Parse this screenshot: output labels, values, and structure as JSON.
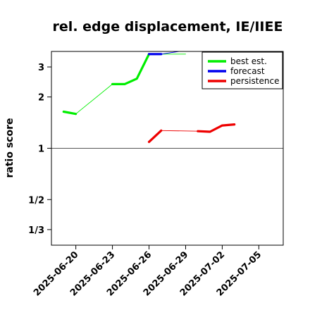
{
  "chart_data": {
    "type": "line",
    "title": "rel. edge displacement, IE/IIEE",
    "xlabel": "",
    "ylabel": "ratio score",
    "y_scale": "log",
    "ylim": [
      0.27,
      3.7
    ],
    "xlim": [
      "2025-06-18",
      "2025-07-07"
    ],
    "x_ticks": [
      "2025-06-20",
      "2025-06-23",
      "2025-06-26",
      "2025-06-29",
      "2025-07-02",
      "2025-07-05"
    ],
    "x_tick_colors": [
      "#000000",
      "#000000",
      "#228b22",
      "#000000",
      "#000000",
      "#000000"
    ],
    "y_ticks": [
      {
        "value": 3,
        "label": "3"
      },
      {
        "value": 2,
        "label": "2"
      },
      {
        "value": 1,
        "label": "1"
      },
      {
        "value": 0.5,
        "label": "1/2"
      },
      {
        "value": 0.3333,
        "label": "1/3"
      }
    ],
    "reference_line": 1,
    "legend_position": "top-right",
    "series": [
      {
        "name": "best est.",
        "color": "#00ee00",
        "segments": [
          {
            "thin": false,
            "points": [
              [
                "2025-06-19",
                1.64
              ],
              [
                "2025-06-20",
                1.59
              ]
            ]
          },
          {
            "thin": true,
            "points": [
              [
                "2025-06-20",
                1.59
              ],
              [
                "2025-06-23",
                2.38
              ]
            ]
          },
          {
            "thin": false,
            "points": [
              [
                "2025-06-23",
                2.38
              ],
              [
                "2025-06-24",
                2.38
              ],
              [
                "2025-06-25",
                2.56
              ],
              [
                "2025-06-26",
                3.57
              ]
            ]
          },
          {
            "thin": true,
            "points": [
              [
                "2025-06-26",
                3.57
              ],
              [
                "2025-06-29",
                3.57
              ]
            ]
          }
        ]
      },
      {
        "name": "forecast",
        "color": "#0000ee",
        "segments": [
          {
            "thin": false,
            "points": [
              [
                "2025-06-26",
                3.57
              ],
              [
                "2025-06-27",
                3.57
              ]
            ]
          },
          {
            "thin": true,
            "points": [
              [
                "2025-06-27",
                3.57
              ],
              [
                "2025-06-29",
                3.75
              ]
            ]
          }
        ]
      },
      {
        "name": "persistence",
        "color": "#ee0000",
        "segments": [
          {
            "thin": false,
            "points": [
              [
                "2025-06-26",
                1.09
              ],
              [
                "2025-06-27",
                1.27
              ]
            ]
          },
          {
            "thin": true,
            "points": [
              [
                "2025-06-27",
                1.27
              ],
              [
                "2025-06-30",
                1.26
              ]
            ]
          },
          {
            "thin": false,
            "points": [
              [
                "2025-06-30",
                1.26
              ],
              [
                "2025-07-01",
                1.25
              ],
              [
                "2025-07-02",
                1.36
              ],
              [
                "2025-07-03",
                1.38
              ]
            ]
          }
        ]
      }
    ]
  }
}
